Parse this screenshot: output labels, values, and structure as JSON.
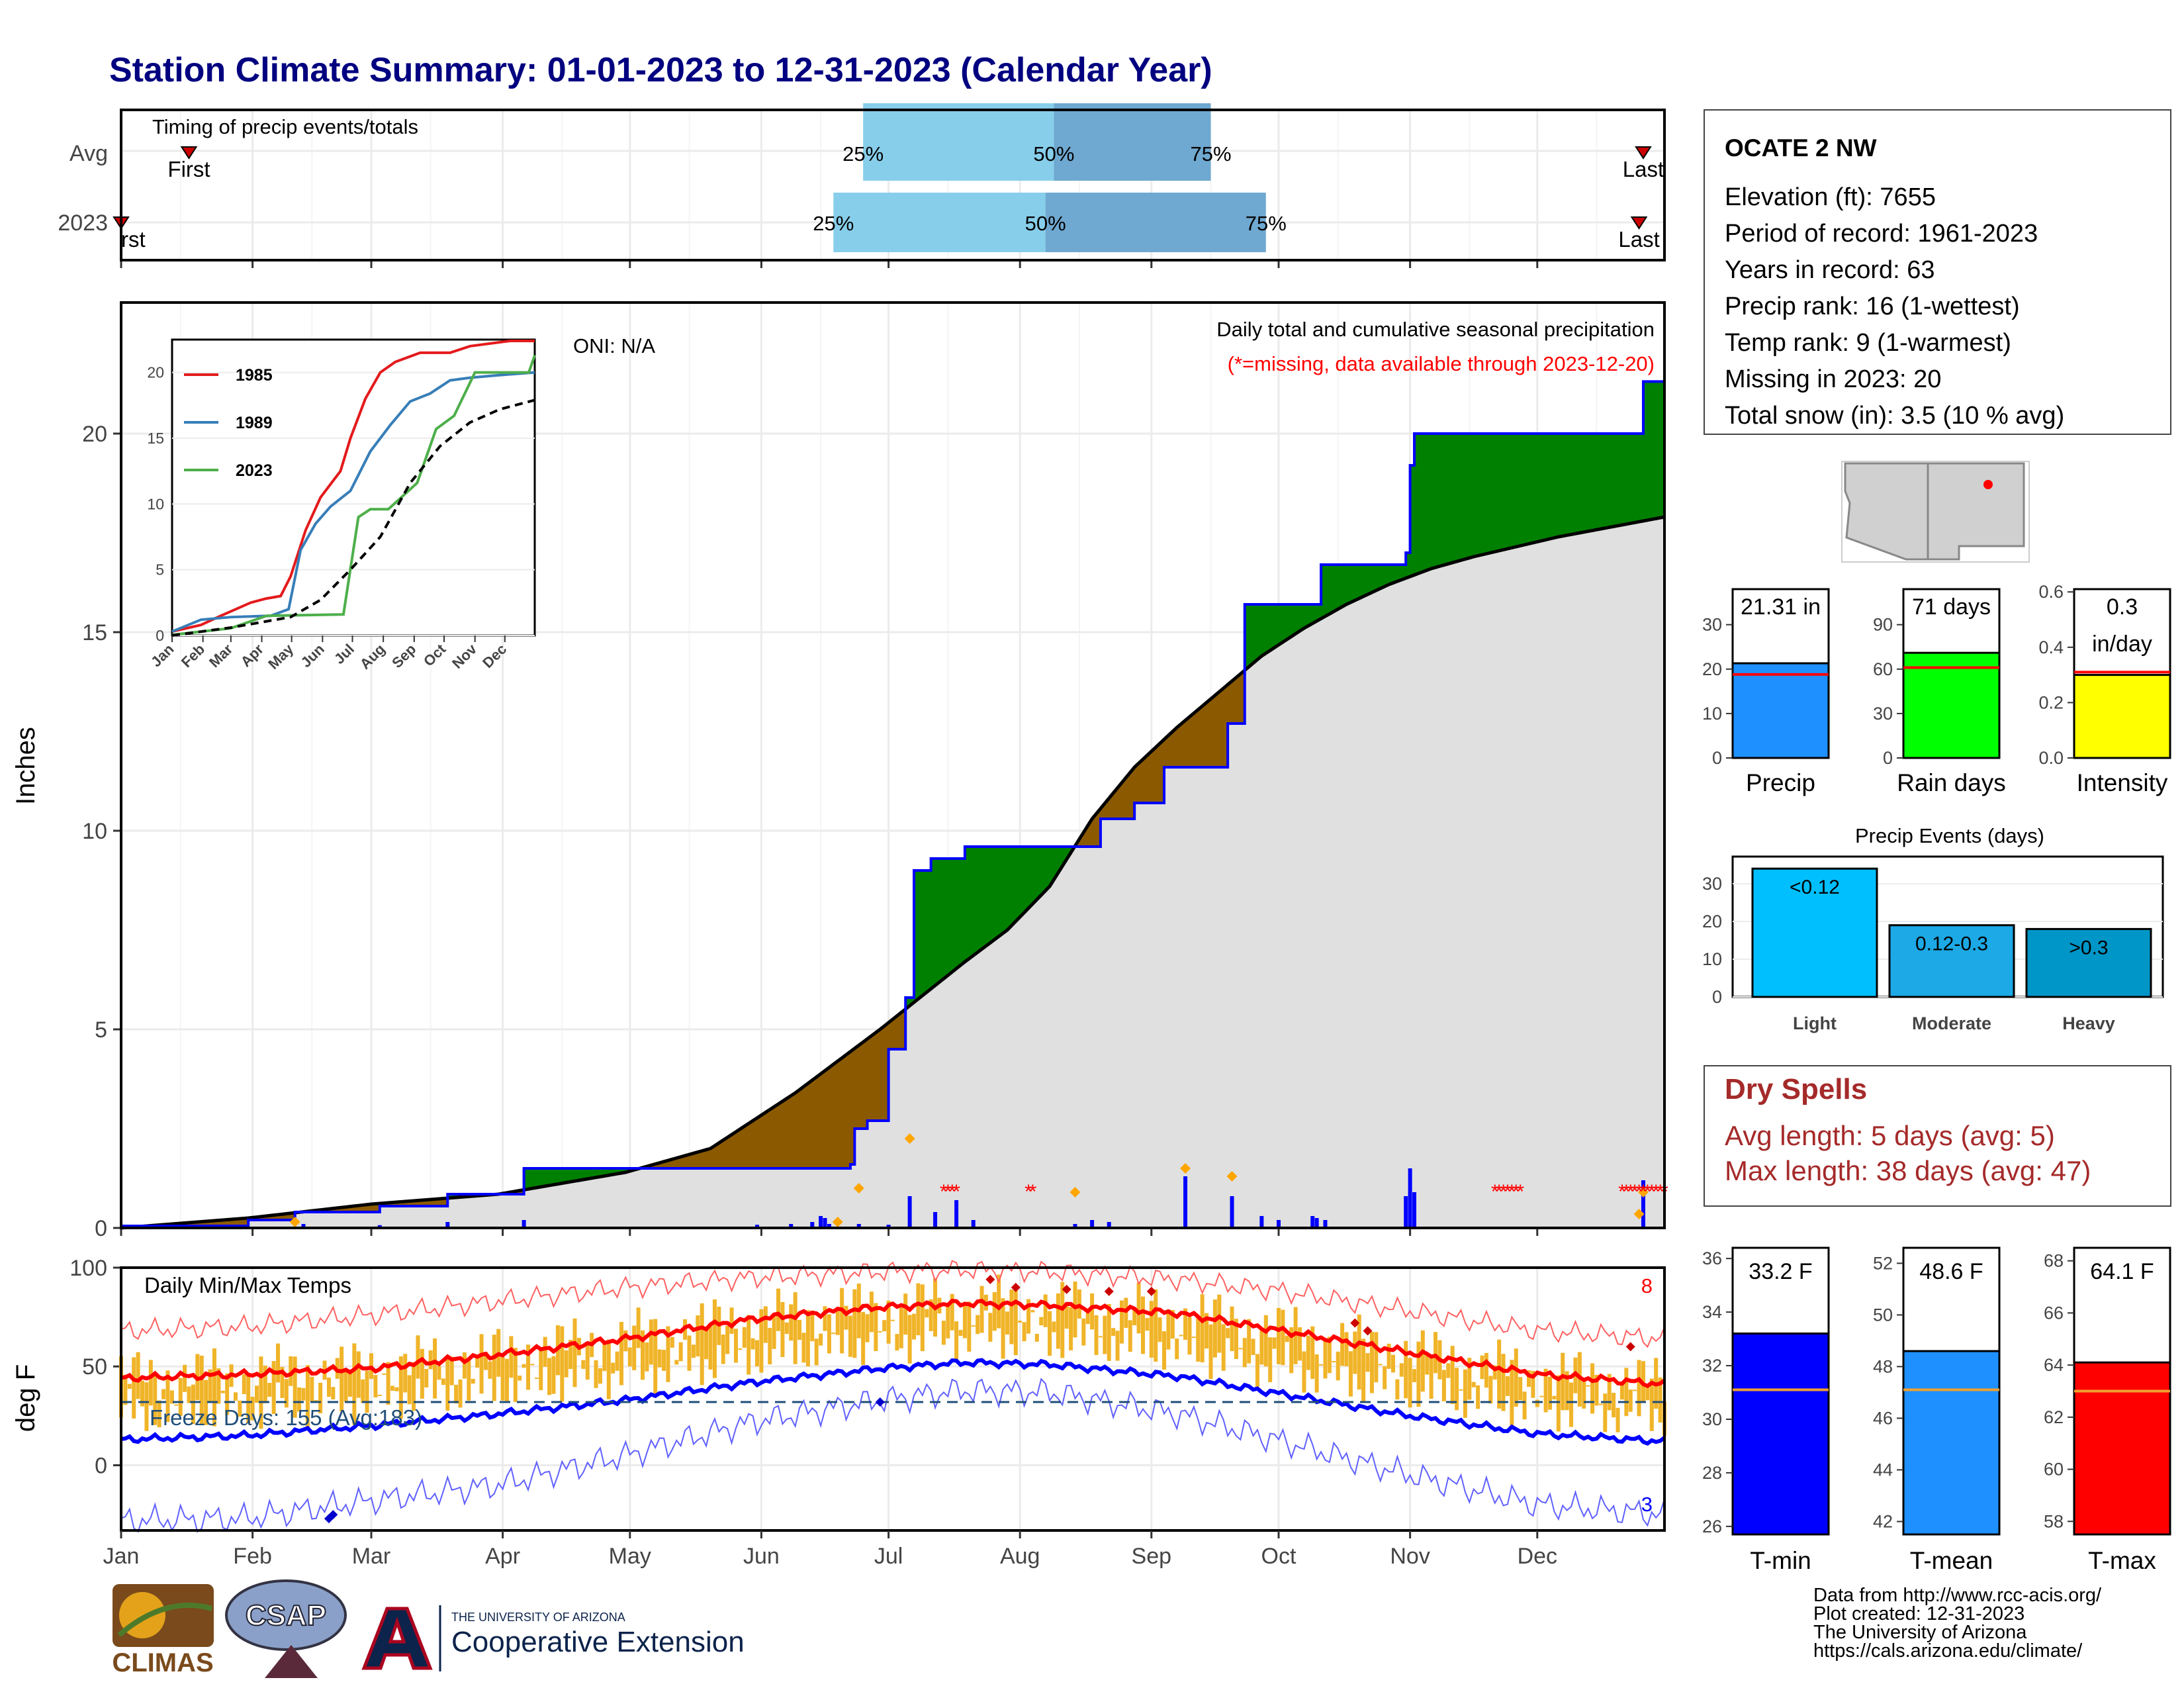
{
  "title": "Station Climate Summary: 01-01-2023 to 12-31-2023 (Calendar Year)",
  "months": [
    "Jan",
    "Feb",
    "Mar",
    "Apr",
    "May",
    "Jun",
    "Jul",
    "Aug",
    "Sep",
    "Oct",
    "Nov",
    "Dec"
  ],
  "station": {
    "name": "OCATE 2 NW",
    "lines": [
      "Elevation (ft): 7655",
      "Period of record: 1961-2023",
      "Years in record: 63",
      "Precip rank: 16 (1-wettest)",
      "Temp rank: 9 (1-warmest)",
      "Missing in 2023: 20",
      "Total snow (in): 3.5 (10 % avg)"
    ]
  },
  "timing": {
    "title": "Timing of precip events/totals",
    "row_labels": [
      "Avg",
      "2023"
    ],
    "first_label": "First",
    "first_label_clipped": "rst",
    "last_label": "Last",
    "pct_labels": [
      "25%",
      "50%",
      "75%"
    ],
    "avg": {
      "first": 17,
      "p25": 176,
      "p50": 221,
      "p75": 258,
      "last": 360
    },
    "y2023": {
      "first": 1,
      "p25": 169,
      "p50": 219,
      "p75": 271,
      "last": 359
    }
  },
  "precip_panel": {
    "ylabel": "Inches",
    "oni": "ONI: N/A",
    "subtitle": "Daily total and cumulative seasonal precipitation",
    "note": "(*=missing, data available through 2023-12-20)",
    "ticks": [
      0,
      5,
      10,
      15,
      20
    ],
    "colors": {
      "above": "#008000",
      "below": "#8B5A00",
      "avg_fill": "#e0e0e0",
      "line": "#0000ff",
      "bars": "#0000ff",
      "missing": "#ff0000"
    }
  },
  "inset": {
    "series": [
      {
        "name": "1985",
        "color": "#e41a1c"
      },
      {
        "name": "1989",
        "color": "#377eb8"
      },
      {
        "name": "2023",
        "color": "#4daf4a"
      }
    ],
    "ticks": [
      0,
      5,
      10,
      15,
      20
    ]
  },
  "temp_panel": {
    "ylabel": "deg F",
    "title": "Daily Min/Max Temps",
    "freeze": "Freeze Days: 155 (Avg:183)",
    "max_count": "8",
    "min_count": "3",
    "ticks": [
      0,
      50,
      100
    ]
  },
  "mini_bars": [
    {
      "label": "Precip",
      "value_text": "21.31 in",
      "value": 21.31,
      "avg": 18.8,
      "ymax": 38,
      "ticks": [
        "0",
        "10",
        "20",
        "30"
      ],
      "tick_vals": [
        0,
        10,
        20,
        30
      ],
      "color": "#1e90ff"
    },
    {
      "label": "Rain days",
      "value_text": "71 days",
      "value": 71,
      "avg": 61,
      "ymax": 114,
      "ticks": [
        "0",
        "30",
        "60",
        "90"
      ],
      "tick_vals": [
        0,
        30,
        60,
        90
      ],
      "color": "#00ff00"
    },
    {
      "label": "Intensity",
      "value_text": "0.3\nin/day",
      "value": 0.3,
      "avg": 0.31,
      "ymax": 0.61,
      "ticks": [
        "0.0",
        "0.2",
        "0.4",
        "0.6"
      ],
      "tick_vals": [
        0,
        0.2,
        0.4,
        0.6
      ],
      "color": "#ffff00"
    }
  ],
  "events": {
    "title": "Precip Events (days)",
    "ticks": [
      0,
      10,
      20,
      30
    ],
    "bars": [
      {
        "category": "Light",
        "label": "<0.12",
        "value": 34,
        "color": "#00bfff"
      },
      {
        "category": "Moderate",
        "label": "0.12-0.3",
        "value": 19,
        "color": "#1ca9e6"
      },
      {
        "category": "Heavy",
        "label": ">0.3",
        "value": 18,
        "color": "#0096c7"
      }
    ]
  },
  "dry_spells": {
    "title": "Dry Spells",
    "avg_line": "Avg length: 5 days (avg: 5)",
    "max_line": "Max length: 38 days (avg: 47)"
  },
  "temp_bars": [
    {
      "label": "T-min",
      "value_text": "33.2 F",
      "value": 33.2,
      "avg": 31.1,
      "ymin": 25.7,
      "ymax": 36.4,
      "ticks": [
        26,
        28,
        30,
        32,
        34,
        36
      ],
      "color": "#0000ff"
    },
    {
      "label": "T-mean",
      "value_text": "48.6 F",
      "value": 48.6,
      "avg": 47.1,
      "ymin": 41.5,
      "ymax": 52.6,
      "ticks": [
        42,
        44,
        46,
        48,
        50,
        52
      ],
      "color": "#1e90ff"
    },
    {
      "label": "T-max",
      "value_text": "64.1 F",
      "value": 64.1,
      "avg": 63.0,
      "ymin": 57.5,
      "ymax": 68.5,
      "ticks": [
        58,
        60,
        62,
        64,
        66,
        68
      ],
      "color": "#ff0000"
    }
  ],
  "footer": {
    "lines": [
      "Data from http://www.rcc-acis.org/",
      "Plot created: 12-31-2023",
      "The University of Arizona",
      "https://cals.arizona.edu/climate/"
    ],
    "climas": "CLIMAS",
    "csap": "CSAP",
    "ua_small": "THE UNIVERSITY OF ARIZONA",
    "ua_big": "Cooperative Extension"
  },
  "chart_data": {
    "type": "area",
    "title": "Daily total and cumulative seasonal precipitation",
    "ylabel": "Inches",
    "ylim": [
      0,
      23.3
    ],
    "x_days": [
      1,
      365
    ],
    "cumulative_2023": [
      [
        1,
        0.05
      ],
      [
        31,
        0.2
      ],
      [
        42,
        0.4
      ],
      [
        62,
        0.55
      ],
      [
        78,
        0.85
      ],
      [
        96,
        1.5
      ],
      [
        173,
        1.6
      ],
      [
        174,
        2.5
      ],
      [
        177,
        2.7
      ],
      [
        182,
        4.5
      ],
      [
        186,
        5.8
      ],
      [
        188,
        9.0
      ],
      [
        192,
        9.3
      ],
      [
        200,
        9.6
      ],
      [
        218,
        9.6
      ],
      [
        232,
        10.3
      ],
      [
        240,
        10.7
      ],
      [
        247,
        11.6
      ],
      [
        262,
        12.7
      ],
      [
        266,
        15.7
      ],
      [
        284,
        16.7
      ],
      [
        304,
        17.0
      ],
      [
        305,
        19.2
      ],
      [
        306,
        20.0
      ],
      [
        359,
        20.0
      ],
      [
        360,
        21.31
      ],
      [
        365,
        21.31
      ]
    ],
    "cumulative_avg": [
      [
        1,
        0.0
      ],
      [
        31,
        0.25
      ],
      [
        60,
        0.6
      ],
      [
        90,
        0.85
      ],
      [
        120,
        1.4
      ],
      [
        140,
        2.0
      ],
      [
        150,
        2.7
      ],
      [
        160,
        3.4
      ],
      [
        180,
        5.0
      ],
      [
        200,
        6.7
      ],
      [
        210,
        7.5
      ],
      [
        220,
        8.6
      ],
      [
        230,
        10.3
      ],
      [
        240,
        11.6
      ],
      [
        250,
        12.6
      ],
      [
        260,
        13.5
      ],
      [
        270,
        14.4
      ],
      [
        280,
        15.1
      ],
      [
        290,
        15.7
      ],
      [
        300,
        16.2
      ],
      [
        310,
        16.6
      ],
      [
        320,
        16.9
      ],
      [
        340,
        17.4
      ],
      [
        365,
        17.9
      ]
    ],
    "daily_bars": [
      [
        44,
        0.1
      ],
      [
        62,
        0.07
      ],
      [
        78,
        0.15
      ],
      [
        96,
        0.2
      ],
      [
        151,
        0.08
      ],
      [
        159,
        0.1
      ],
      [
        164,
        0.15
      ],
      [
        166,
        0.3
      ],
      [
        167,
        0.25
      ],
      [
        168,
        0.1
      ],
      [
        175,
        0.1
      ],
      [
        182,
        0.08
      ],
      [
        187,
        0.8
      ],
      [
        193,
        0.4
      ],
      [
        198,
        0.7
      ],
      [
        202,
        0.2
      ],
      [
        226,
        0.1
      ],
      [
        230,
        0.2
      ],
      [
        234,
        0.15
      ],
      [
        252,
        1.3
      ],
      [
        263,
        0.8
      ],
      [
        270,
        0.3
      ],
      [
        274,
        0.2
      ],
      [
        282,
        0.3
      ],
      [
        283,
        0.25
      ],
      [
        285,
        0.2
      ],
      [
        304,
        0.8
      ],
      [
        305,
        1.5
      ],
      [
        306,
        0.9
      ],
      [
        360,
        1.2
      ]
    ],
    "missing_days": [
      [
        195,
        198
      ],
      [
        215,
        216
      ],
      [
        325,
        331
      ],
      [
        355,
        365
      ]
    ],
    "inset_series": [
      {
        "name": "1985",
        "points": [
          [
            1,
            0.3
          ],
          [
            30,
            0.8
          ],
          [
            50,
            1.5
          ],
          [
            80,
            2.5
          ],
          [
            95,
            2.8
          ],
          [
            110,
            3.0
          ],
          [
            120,
            4.5
          ],
          [
            135,
            8.0
          ],
          [
            150,
            10.5
          ],
          [
            170,
            12.5
          ],
          [
            180,
            15.0
          ],
          [
            195,
            18.0
          ],
          [
            210,
            20.0
          ],
          [
            225,
            20.8
          ],
          [
            250,
            21.5
          ],
          [
            280,
            21.5
          ],
          [
            300,
            22.0
          ],
          [
            340,
            22.4
          ],
          [
            365,
            22.4
          ]
        ]
      },
      {
        "name": "1989",
        "points": [
          [
            1,
            0.3
          ],
          [
            30,
            1.2
          ],
          [
            60,
            1.4
          ],
          [
            100,
            1.5
          ],
          [
            118,
            2.0
          ],
          [
            130,
            6.5
          ],
          [
            145,
            8.5
          ],
          [
            160,
            9.8
          ],
          [
            180,
            11.0
          ],
          [
            200,
            14.0
          ],
          [
            220,
            16.0
          ],
          [
            240,
            17.8
          ],
          [
            260,
            18.4
          ],
          [
            280,
            19.4
          ],
          [
            300,
            19.6
          ],
          [
            330,
            19.8
          ],
          [
            365,
            20.0
          ]
        ]
      },
      {
        "name": "2023",
        "points": [
          [
            1,
            0.05
          ],
          [
            60,
            0.55
          ],
          [
            96,
            1.5
          ],
          [
            173,
            1.6
          ],
          [
            188,
            9.0
          ],
          [
            200,
            9.6
          ],
          [
            218,
            9.6
          ],
          [
            247,
            11.6
          ],
          [
            266,
            15.7
          ],
          [
            284,
            16.7
          ],
          [
            305,
            20.0
          ],
          [
            359,
            20.0
          ],
          [
            365,
            21.31
          ]
        ]
      },
      {
        "name": "avg",
        "points": [
          [
            1,
            0.0
          ],
          [
            60,
            0.6
          ],
          [
            120,
            1.4
          ],
          [
            150,
            2.7
          ],
          [
            180,
            5.0
          ],
          [
            210,
            7.5
          ],
          [
            240,
            11.6
          ],
          [
            270,
            14.4
          ],
          [
            300,
            16.2
          ],
          [
            330,
            17.2
          ],
          [
            365,
            17.9
          ]
        ]
      }
    ],
    "temp": {
      "ylim": [
        -33,
        100
      ],
      "avg_max": [
        [
          1,
          44
        ],
        [
          30,
          46
        ],
        [
          60,
          49
        ],
        [
          90,
          56
        ],
        [
          120,
          64
        ],
        [
          150,
          74
        ],
        [
          180,
          80
        ],
        [
          200,
          82
        ],
        [
          220,
          81
        ],
        [
          250,
          77
        ],
        [
          275,
          68
        ],
        [
          305,
          57
        ],
        [
          335,
          46
        ],
        [
          365,
          41
        ]
      ],
      "avg_min": [
        [
          1,
          13
        ],
        [
          30,
          15
        ],
        [
          60,
          20
        ],
        [
          90,
          26
        ],
        [
          120,
          33
        ],
        [
          150,
          42
        ],
        [
          180,
          49
        ],
        [
          200,
          52
        ],
        [
          220,
          51
        ],
        [
          250,
          45
        ],
        [
          275,
          36
        ],
        [
          305,
          25
        ],
        [
          335,
          16
        ],
        [
          365,
          12
        ]
      ],
      "record_max": [
        [
          1,
          68
        ],
        [
          30,
          70
        ],
        [
          60,
          76
        ],
        [
          90,
          83
        ],
        [
          120,
          90
        ],
        [
          150,
          95
        ],
        [
          180,
          98
        ],
        [
          200,
          99
        ],
        [
          220,
          98
        ],
        [
          250,
          94
        ],
        [
          275,
          88
        ],
        [
          305,
          78
        ],
        [
          335,
          68
        ],
        [
          365,
          64
        ]
      ],
      "record_min": [
        [
          1,
          -28
        ],
        [
          30,
          -27
        ],
        [
          60,
          -18
        ],
        [
          90,
          -10
        ],
        [
          120,
          5
        ],
        [
          150,
          22
        ],
        [
          180,
          33
        ],
        [
          200,
          38
        ],
        [
          220,
          37
        ],
        [
          250,
          26
        ],
        [
          275,
          12
        ],
        [
          305,
          -5
        ],
        [
          335,
          -20
        ],
        [
          365,
          -25
        ]
      ],
      "freeze_line": 32
    }
  }
}
